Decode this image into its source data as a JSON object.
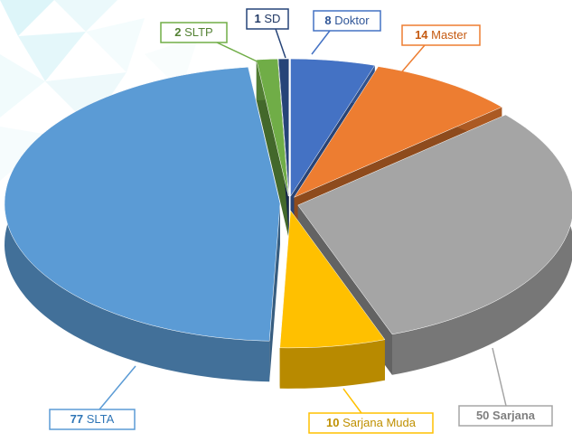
{
  "chart_data": {
    "type": "pie3d",
    "categories": [
      "Doktor",
      "Master",
      "Sarjana",
      "Sarjana Muda",
      "SLTA",
      "SLTP",
      "SD"
    ],
    "values": [
      8,
      14,
      50,
      10,
      77,
      2,
      1
    ],
    "colors": [
      "#4472c4",
      "#ed7d31",
      "#a5a5a5",
      "#ffc000",
      "#5b9bd5",
      "#70ad47",
      "#264478"
    ]
  }
}
